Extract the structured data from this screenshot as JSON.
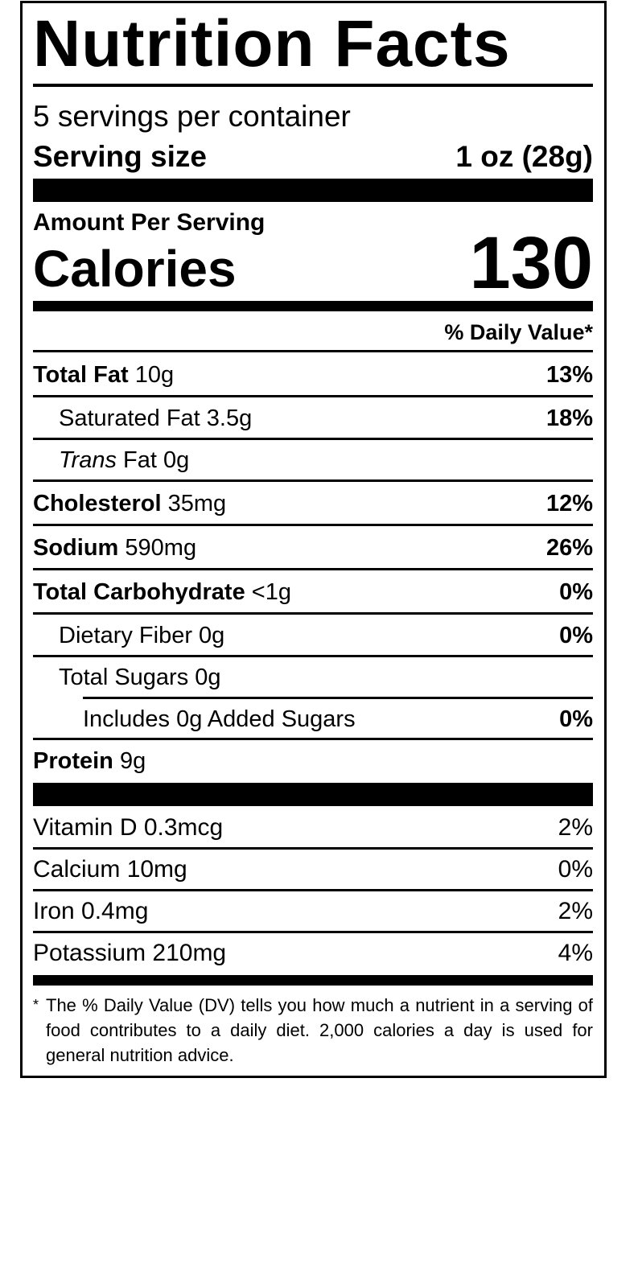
{
  "title": "Nutrition Facts",
  "servings_per_container": "5 servings per container",
  "serving_size": {
    "label": "Serving size",
    "value": "1 oz (28g)"
  },
  "amount_per_serving": "Amount Per Serving",
  "calories": {
    "label": "Calories",
    "value": "130"
  },
  "daily_value_header": "% Daily Value*",
  "nutrients": [
    {
      "name": "Total Fat",
      "amount": "10g",
      "dv": "13%"
    },
    {
      "name": "Saturated Fat 3.5g",
      "amount": "",
      "dv": "18%"
    },
    {
      "name_italic": "Trans",
      "name": "Fat 0g",
      "dv": ""
    },
    {
      "name": "Cholesterol",
      "amount": "35mg",
      "dv": "12%"
    },
    {
      "name": "Sodium",
      "amount": "590mg",
      "dv": "26%"
    },
    {
      "name": "Total Carbohydrate",
      "amount": "<1g",
      "dv": "0%"
    },
    {
      "name": "Dietary Fiber 0g",
      "dv": "0%"
    },
    {
      "name": "Total Sugars 0g",
      "dv": ""
    },
    {
      "name": "Includes 0g Added Sugars",
      "dv": "0%"
    },
    {
      "name": "Protein",
      "amount": "9g",
      "dv": ""
    }
  ],
  "vitamins": [
    {
      "name": "Vitamin D 0.3mcg",
      "dv": "2%"
    },
    {
      "name": "Calcium 10mg",
      "dv": "0%"
    },
    {
      "name": "Iron 0.4mg",
      "dv": "2%"
    },
    {
      "name": "Potassium 210mg",
      "dv": "4%"
    }
  ],
  "footnote": {
    "star": "*",
    "text": "The % Daily Value (DV) tells you how much a nutrient in a serving of food contributes to a daily diet. 2,000 calories a day is used for general nutrition advice."
  }
}
